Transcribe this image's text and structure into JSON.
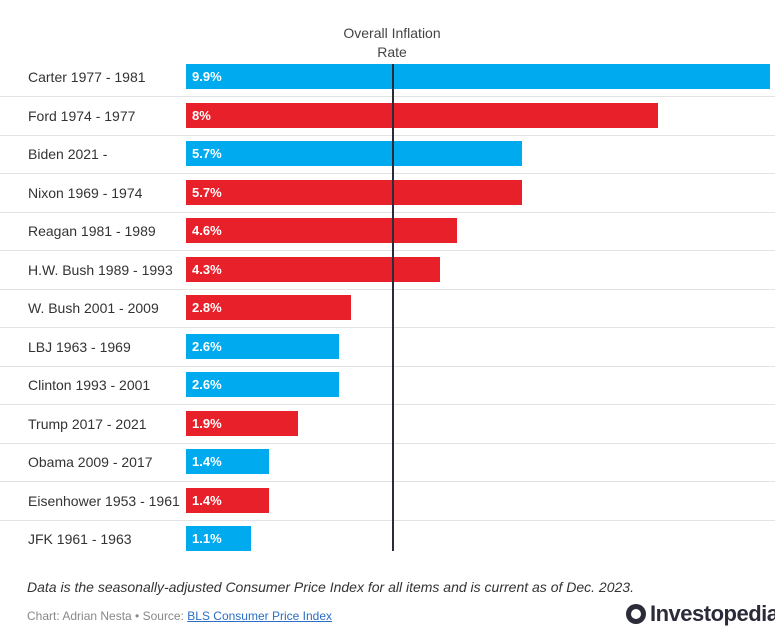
{
  "chart_data": {
    "type": "bar",
    "orientation": "horizontal",
    "column_header": "Overall Inflation\nRate",
    "categories": [
      "Carter 1977 - 1981",
      "Ford 1974 - 1977",
      "Biden 2021 -",
      "Nixon 1969 - 1974",
      "Reagan 1981 - 1989",
      "H.W. Bush 1989 - 1993",
      "W. Bush 2001 - 2009",
      "LBJ 1963 - 1969",
      "Clinton 1993 - 2001",
      "Trump 2017 - 2021",
      "Obama 2009 - 2017",
      "Eisenhower 1953 - 1961",
      "JFK 1961 - 1963"
    ],
    "values": [
      9.9,
      8,
      5.7,
      5.7,
      4.6,
      4.3,
      2.8,
      2.6,
      2.6,
      1.9,
      1.4,
      1.4,
      1.1
    ],
    "value_labels": [
      "9.9%",
      "8%",
      "5.7%",
      "5.7%",
      "4.6%",
      "4.3%",
      "2.8%",
      "2.6%",
      "2.6%",
      "1.9%",
      "1.4%",
      "1.4%",
      "1.1%"
    ],
    "party": [
      "D",
      "R",
      "D",
      "R",
      "R",
      "R",
      "R",
      "D",
      "D",
      "R",
      "D",
      "R",
      "D"
    ],
    "party_colors": {
      "D": "#00aaee",
      "R": "#e8202a"
    },
    "reference_line_value": 3.5,
    "xlim": [
      0,
      9.9
    ],
    "grid": true,
    "legend": "none"
  },
  "footnote": "Data is the seasonally-adjusted Consumer Price Index for all items and is current as of Dec. 2023.",
  "credit": {
    "prefix": "Chart: Adrian Nesta • Source: ",
    "link_text": "BLS Consumer Price Index"
  },
  "brand": {
    "name": "Investopedia",
    "icon": "investopedia-logo-icon",
    "color": "#2b2b3a"
  }
}
